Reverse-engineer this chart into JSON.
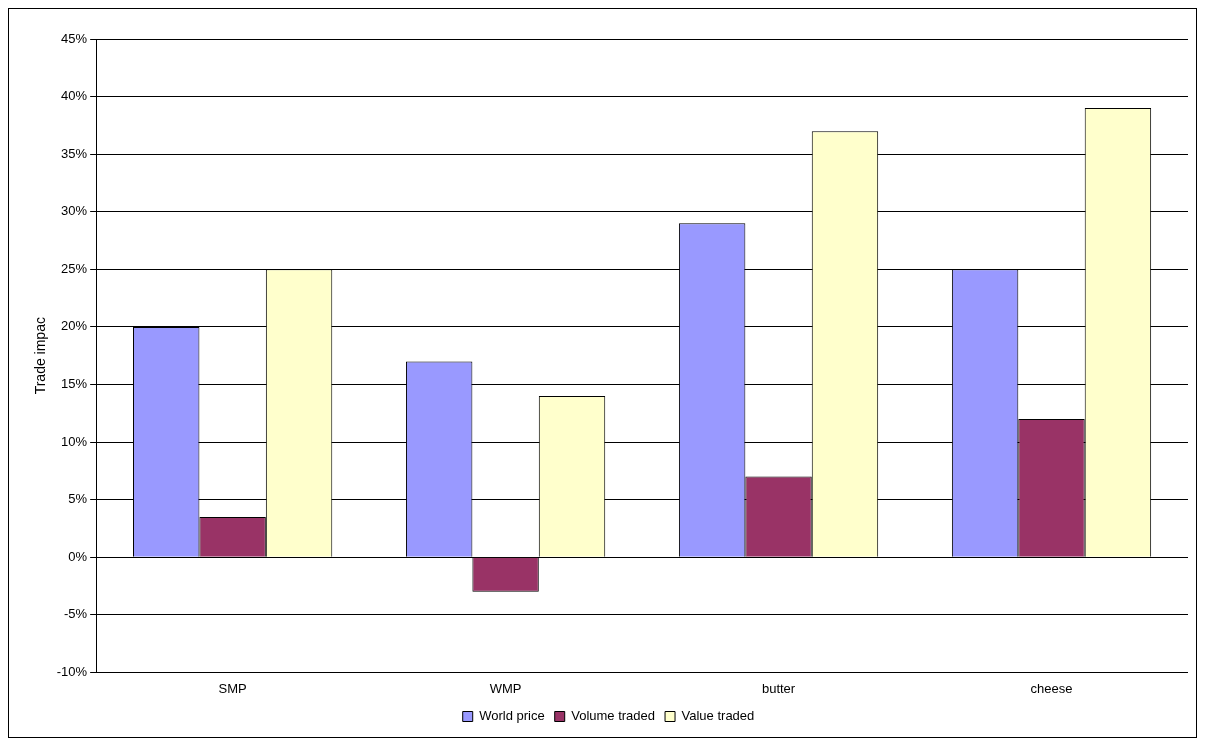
{
  "chart_data": {
    "type": "bar",
    "ylabel": "Trade impac",
    "categories": [
      "SMP",
      "WMP",
      "butter",
      "cheese"
    ],
    "series": [
      {
        "name": "World price",
        "color": "#9999ff",
        "values": [
          20,
          17,
          29,
          25
        ]
      },
      {
        "name": "Volume traded",
        "color": "#993366",
        "values": [
          3.5,
          -3,
          7,
          12
        ]
      },
      {
        "name": "Value traded",
        "color": "#ffffcc",
        "values": [
          25,
          14,
          37,
          39
        ]
      }
    ],
    "ylim": [
      -10,
      45
    ],
    "yticks": [
      {
        "value": -10,
        "label": "-10%"
      },
      {
        "value": -5,
        "label": "-5%"
      },
      {
        "value": 0,
        "label": "0%"
      },
      {
        "value": 5,
        "label": "5%"
      },
      {
        "value": 10,
        "label": "10%"
      },
      {
        "value": 15,
        "label": "15%"
      },
      {
        "value": 20,
        "label": "20%"
      },
      {
        "value": 25,
        "label": "25%"
      },
      {
        "value": 30,
        "label": "30%"
      },
      {
        "value": 35,
        "label": "35%"
      },
      {
        "value": 40,
        "label": "40%"
      },
      {
        "value": 45,
        "label": "45%"
      }
    ],
    "grid": "y",
    "legend": "bottom"
  }
}
